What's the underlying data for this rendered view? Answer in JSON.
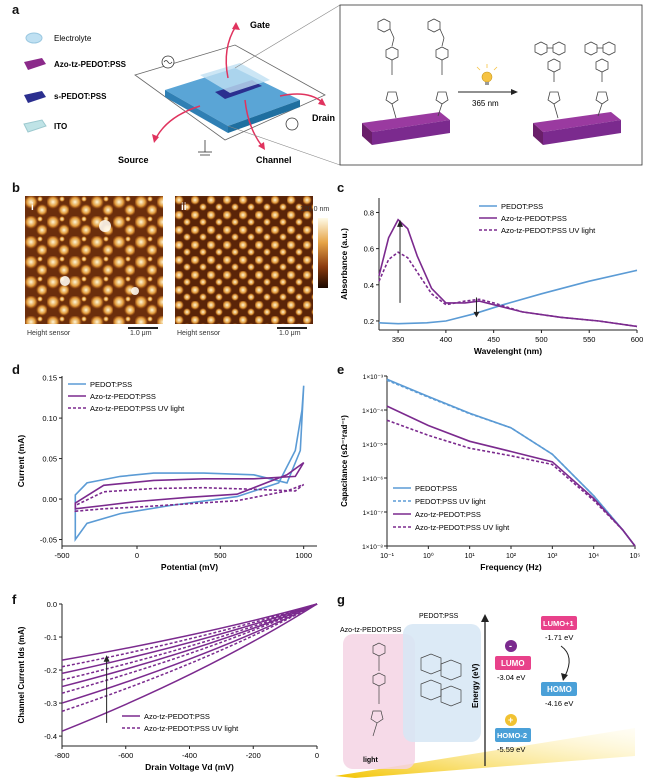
{
  "panel_labels": {
    "a": "a",
    "b": "b",
    "c": "c",
    "d": "d",
    "e": "e",
    "f": "f",
    "g": "g"
  },
  "a": {
    "legend": [
      "Electrolyte",
      "Azo-tz-PEDOT:PSS",
      "s-PEDOT:PSS",
      "ITO"
    ],
    "legend_colors": [
      "#bfe0f2",
      "#8b2a8a",
      "#2b2f8f",
      "#bfe3e6"
    ],
    "gate": "Gate",
    "drain": "Drain",
    "source": "Source",
    "channel": "Channel",
    "reaction": "365 nm"
  },
  "b": {
    "img_i": "i",
    "img_ii": "ii",
    "scale_max": "120.0 nm",
    "sensor_label": "Height sensor",
    "scalebar": "1.0 μm"
  },
  "colors": {
    "pedot": "#5b9bd5",
    "azo": "#7b2a8e"
  },
  "c": {
    "chart_data": {
      "type": "line",
      "xlabel": "Wavelenght (nm)",
      "ylabel": "Absorbance (a.u.)",
      "xlim": [
        330,
        600
      ],
      "ylim": [
        0.15,
        0.88
      ],
      "xticks": [
        350,
        400,
        450,
        500,
        550,
        600
      ],
      "yticks": [
        0.2,
        0.4,
        0.6,
        0.8
      ],
      "series": [
        {
          "name": "PEDOT:PSS",
          "x": [
            330,
            350,
            380,
            400,
            430,
            460,
            500,
            550,
            600
          ],
          "y": [
            0.19,
            0.185,
            0.19,
            0.2,
            0.24,
            0.29,
            0.35,
            0.42,
            0.48
          ]
        },
        {
          "name": "Azo-tz-PEDOT:PSS",
          "x": [
            330,
            340,
            350,
            360,
            370,
            385,
            400,
            420,
            435,
            450,
            480,
            520,
            560,
            600
          ],
          "y": [
            0.45,
            0.66,
            0.76,
            0.71,
            0.56,
            0.38,
            0.3,
            0.3,
            0.31,
            0.29,
            0.25,
            0.22,
            0.2,
            0.17
          ]
        },
        {
          "name": "Azo-tz-PEDOT:PSS UV light",
          "x": [
            330,
            340,
            350,
            360,
            370,
            385,
            400,
            420,
            435,
            450,
            480,
            520,
            560,
            600
          ],
          "y": [
            0.42,
            0.54,
            0.58,
            0.55,
            0.47,
            0.35,
            0.29,
            0.31,
            0.32,
            0.3,
            0.25,
            0.22,
            0.2,
            0.17
          ]
        }
      ]
    }
  },
  "d": {
    "chart_data": {
      "type": "line",
      "xlabel": "Potential (mV)",
      "ylabel": "Current (mA)",
      "xlim": [
        -450,
        1080
      ],
      "ylim": [
        -0.058,
        0.152
      ],
      "xticks": [
        -500,
        0,
        500,
        1000
      ],
      "yticks": [
        -0.05,
        0.0,
        0.05,
        0.1,
        0.15
      ],
      "series": [
        {
          "name": "PEDOT:PSS",
          "x": [
            -370,
            -300,
            -100,
            200,
            600,
            850,
            950,
            990,
            1000,
            980,
            900,
            700,
            400,
            100,
            -100,
            -300,
            -370
          ],
          "y": [
            -0.05,
            -0.03,
            -0.018,
            -0.008,
            0.003,
            0.02,
            0.06,
            0.11,
            0.14,
            0.06,
            0.02,
            0.03,
            0.032,
            0.032,
            0.028,
            0.02,
            0.005
          ]
        },
        {
          "name": "Azo-tz-PEDOT:PSS",
          "x": [
            -370,
            -200,
            0,
            300,
            600,
            900,
            1000,
            950,
            700,
            400,
            100,
            -200,
            -370
          ],
          "y": [
            -0.012,
            -0.008,
            -0.003,
            0.002,
            0.006,
            0.03,
            0.045,
            0.028,
            0.025,
            0.025,
            0.023,
            0.017,
            -0.005
          ]
        },
        {
          "name": "Azo-tz-PEDOT:PSS UV light",
          "x": [
            -370,
            -200,
            0,
            300,
            600,
            900,
            1000,
            950,
            700,
            400,
            100,
            -200,
            -370
          ],
          "y": [
            -0.015,
            -0.012,
            -0.01,
            -0.006,
            -0.002,
            0.01,
            0.018,
            0.01,
            0.012,
            0.014,
            0.013,
            0.009,
            -0.008
          ]
        }
      ]
    }
  },
  "e": {
    "chart_data": {
      "type": "line",
      "xlabel": "Frequency (Hz)",
      "ylabel": "Capacitance (sΩ⁻¹rad⁻¹)",
      "xscale": "log",
      "yscale": "log",
      "xlim": [
        0.1,
        100000
      ],
      "ylim": [
        1e-08,
        0.001
      ],
      "xtick_labels": [
        "10⁻¹",
        "10⁰",
        "10¹",
        "10²",
        "10³",
        "10⁴",
        "10⁵"
      ],
      "ytick_labels": [
        "1×10⁻⁸",
        "1×10⁻⁷",
        "1×10⁻⁶",
        "1×10⁻⁵",
        "1×10⁻⁴",
        "1×10⁻³"
      ],
      "series": [
        {
          "name": "PEDOT:PSS",
          "x": [
            0.1,
            1,
            10,
            100,
            1000,
            10000,
            50000,
            100000
          ],
          "y": [
            0.0008,
            0.00025,
            8e-05,
            3e-05,
            5e-06,
            3e-07,
            3e-08,
            1e-08
          ]
        },
        {
          "name": "PEDOT:PSS UV light",
          "x": [
            0.1,
            1,
            10,
            100,
            1000,
            10000,
            50000,
            100000
          ],
          "y": [
            0.00075,
            0.00024,
            7.8e-05,
            3e-05,
            5e-06,
            3e-07,
            3e-08,
            1e-08
          ]
        },
        {
          "name": "Azo-tz-PEDOT:PSS",
          "x": [
            0.1,
            1,
            10,
            100,
            1000,
            10000,
            50000,
            100000
          ],
          "y": [
            0.00013,
            3.5e-05,
            1.2e-05,
            6e-06,
            3e-06,
            2.5e-07,
            3e-08,
            1e-08
          ]
        },
        {
          "name": "Azo-tz-PEDOT:PSS UV light",
          "x": [
            0.1,
            1,
            10,
            100,
            1000,
            10000,
            50000,
            100000
          ],
          "y": [
            5e-05,
            1.8e-05,
            7.5e-06,
            4.5e-06,
            2.5e-06,
            2.2e-07,
            3e-08,
            1e-08
          ]
        }
      ]
    }
  },
  "f": {
    "chart_data": {
      "type": "line",
      "xlabel": "Drain Voltage Vd (mV)",
      "ylabel": "Channel Current Ids (mA)",
      "xlim": [
        -800,
        0
      ],
      "ylim": [
        -0.43,
        0.0
      ],
      "xticks": [
        -800,
        -600,
        -400,
        -200,
        0
      ],
      "yticks": [
        -0.4,
        -0.3,
        -0.2,
        -0.1,
        0.0
      ],
      "end_values": [
        -0.385,
        -0.325,
        -0.3,
        -0.27,
        -0.25,
        -0.23,
        -0.21,
        -0.19,
        -0.17
      ],
      "series": [
        {
          "name": "Azo-tz-PEDOT:PSS"
        },
        {
          "name": "Azo-tz-PEDOT:PSS UV light"
        }
      ]
    }
  },
  "g": {
    "left_label": "Azo-tz-PEDOT:PSS",
    "mid_label": "PEDOT:PSS",
    "energy_axis": "Energy (eV)",
    "light": "light",
    "lumo": "LUMO",
    "lumo_val": "-3.04 eV",
    "lumo1": "LUMO+1",
    "lumo1_val": "-1.71 eV",
    "homo": "HOMO",
    "homo_val": "-4.16 eV",
    "homo2": "HOMO-2",
    "homo2_val": "-5.59 eV",
    "minus": "-",
    "plus": "+"
  }
}
